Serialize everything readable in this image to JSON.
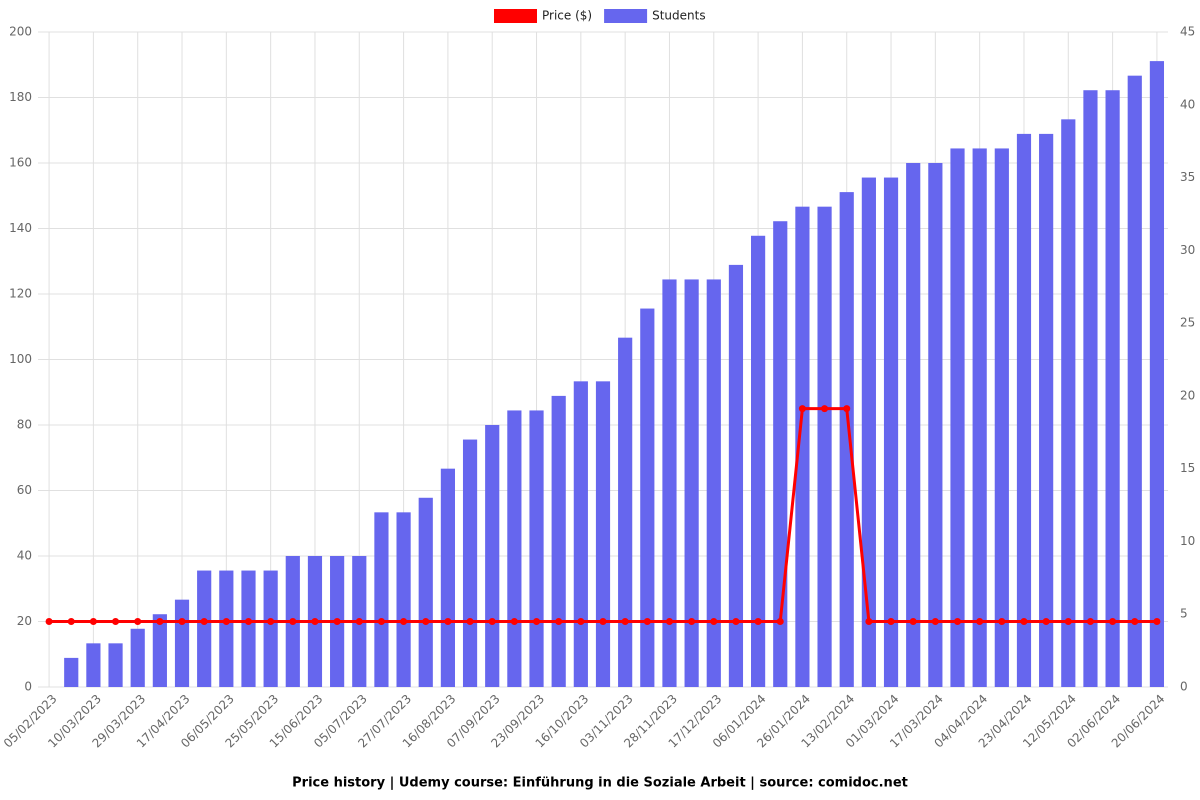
{
  "chart_data": {
    "type": "combo",
    "title": "Price history | Udemy course: Einführung in die Soziale Arbeit | source: comidoc.net",
    "categories": [
      "05/02/2023",
      null,
      "10/03/2023",
      null,
      "29/03/2023",
      null,
      "17/04/2023",
      null,
      "06/05/2023",
      null,
      "25/05/2023",
      null,
      "15/06/2023",
      null,
      "05/07/2023",
      null,
      "27/07/2023",
      null,
      "16/08/2023",
      null,
      "07/09/2023",
      null,
      "23/09/2023",
      null,
      "16/10/2023",
      null,
      "03/11/2023",
      null,
      "28/11/2023",
      null,
      "17/12/2023",
      null,
      "06/01/2024",
      null,
      "26/01/2024",
      null,
      "13/02/2024",
      null,
      "01/03/2024",
      null,
      "17/03/2024",
      null,
      "04/04/2024",
      null,
      "23/04/2024",
      null,
      "12/05/2024",
      null,
      "02/06/2024",
      null,
      "20/06/2024"
    ],
    "series": [
      {
        "name": "Price ($)",
        "type": "line",
        "axis": "y",
        "color": "#ff0000",
        "values": [
          20,
          20,
          20,
          20,
          20,
          20,
          20,
          20,
          20,
          20,
          20,
          20,
          20,
          20,
          20,
          20,
          20,
          20,
          20,
          20,
          20,
          20,
          20,
          20,
          20,
          20,
          20,
          20,
          20,
          20,
          20,
          20,
          20,
          20,
          85,
          85,
          85,
          20,
          20,
          20,
          20,
          20,
          20,
          20,
          20,
          20,
          20,
          20,
          20,
          20,
          20
        ]
      },
      {
        "name": "Students",
        "type": "bar",
        "axis": "y2",
        "color": "#6666ee",
        "values": [
          0,
          2,
          3,
          3,
          4,
          5,
          6,
          8,
          8,
          8,
          8,
          9,
          9,
          9,
          9,
          12,
          12,
          13,
          15,
          17,
          18,
          19,
          19,
          20,
          21,
          21,
          24,
          26,
          28,
          28,
          28,
          29,
          31,
          32,
          33,
          33,
          34,
          35,
          35,
          36,
          36,
          37,
          37,
          37,
          38,
          38,
          39,
          41,
          41,
          42,
          43
        ]
      }
    ],
    "ylim": [
      0,
      200
    ],
    "yticks": [
      0,
      20,
      40,
      60,
      80,
      100,
      120,
      140,
      160,
      180,
      200
    ],
    "y2lim": [
      0,
      45
    ],
    "y2ticks": [
      0,
      5,
      10,
      15,
      20,
      25,
      30,
      35,
      40,
      45
    ],
    "grid": true,
    "legend": "top"
  }
}
